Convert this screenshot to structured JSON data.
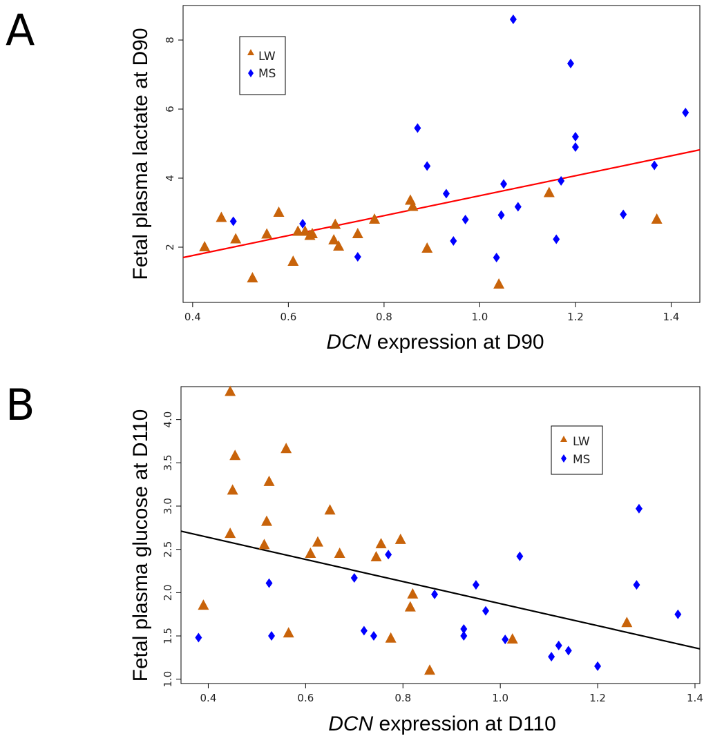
{
  "chart_data": [
    {
      "type": "scatter",
      "panel": "A",
      "ylabel": "Fetal plasma lactate at D90",
      "xlabel_italic": "DCN",
      "xlabel_rest": " expression at D90",
      "xlim": [
        0.38,
        1.46
      ],
      "ylim": [
        0.4,
        9.0
      ],
      "xticks": [
        "0.4",
        "0.6",
        "0.8",
        "1.0",
        "1.2",
        "1.4"
      ],
      "yticks": [
        "2",
        "4",
        "6",
        "8"
      ],
      "xtick_values": [
        0.4,
        0.6,
        0.8,
        1.0,
        1.2,
        1.4
      ],
      "ytick_values": [
        2,
        4,
        6,
        8
      ],
      "legend": {
        "position": "top-left",
        "entries": [
          "LW",
          "MS"
        ]
      },
      "colors": {
        "LW": "#c8630a",
        "MS": "#0000ff",
        "fit": "#ff0000"
      },
      "series": [
        {
          "name": "LW",
          "marker": "triangle",
          "points": [
            [
              0.425,
              2.0
            ],
            [
              0.46,
              2.85
            ],
            [
              0.49,
              2.23
            ],
            [
              0.525,
              1.1
            ],
            [
              0.555,
              2.37
            ],
            [
              0.58,
              3.0
            ],
            [
              0.61,
              1.58
            ],
            [
              0.62,
              2.45
            ],
            [
              0.635,
              2.45
            ],
            [
              0.645,
              2.33
            ],
            [
              0.65,
              2.38
            ],
            [
              0.695,
              2.2
            ],
            [
              0.698,
              2.65
            ],
            [
              0.705,
              2.02
            ],
            [
              0.745,
              2.38
            ],
            [
              0.78,
              2.8
            ],
            [
              0.855,
              3.35
            ],
            [
              0.86,
              3.17
            ],
            [
              0.89,
              1.96
            ],
            [
              1.04,
              0.92
            ],
            [
              1.145,
              3.57
            ],
            [
              1.37,
              2.8
            ]
          ]
        },
        {
          "name": "MS",
          "marker": "diamond",
          "points": [
            [
              0.485,
              2.75
            ],
            [
              0.63,
              2.68
            ],
            [
              0.745,
              1.72
            ],
            [
              0.87,
              5.45
            ],
            [
              0.89,
              4.35
            ],
            [
              0.93,
              3.55
            ],
            [
              0.945,
              2.18
            ],
            [
              0.97,
              2.8
            ],
            [
              1.035,
              1.7
            ],
            [
              1.045,
              2.93
            ],
            [
              1.05,
              3.83
            ],
            [
              1.07,
              8.6
            ],
            [
              1.08,
              3.17
            ],
            [
              1.16,
              2.23
            ],
            [
              1.17,
              3.92
            ],
            [
              1.19,
              7.32
            ],
            [
              1.2,
              4.9
            ],
            [
              1.2,
              5.2
            ],
            [
              1.3,
              2.95
            ],
            [
              1.365,
              4.37
            ],
            [
              1.43,
              5.9
            ]
          ]
        }
      ],
      "fit_line": {
        "x": [
          0.38,
          1.46
        ],
        "y": [
          1.7,
          4.82
        ]
      }
    },
    {
      "type": "scatter",
      "panel": "B",
      "ylabel": "Fetal plasma glucose at D110",
      "xlabel_italic": "DCN",
      "xlabel_rest": " expression at D110",
      "xlim": [
        0.344,
        1.41
      ],
      "ylim": [
        0.95,
        4.38
      ],
      "xticks": [
        "0.4",
        "0.6",
        "0.8",
        "1.0",
        "1.2",
        "1.4"
      ],
      "yticks": [
        "1.0",
        "1.5",
        "2.0",
        "2.5",
        "3.0",
        "3.5",
        "4.0"
      ],
      "xtick_values": [
        0.4,
        0.6,
        0.8,
        1.0,
        1.2,
        1.4
      ],
      "ytick_values": [
        1.0,
        1.5,
        2.0,
        2.5,
        3.0,
        3.5,
        4.0
      ],
      "legend": {
        "position": "top-right",
        "entries": [
          "LW",
          "MS"
        ]
      },
      "colors": {
        "LW": "#c8630a",
        "MS": "#0000ff",
        "fit": "#000000"
      },
      "series": [
        {
          "name": "LW",
          "marker": "triangle",
          "points": [
            [
              0.39,
              1.85
            ],
            [
              0.445,
              4.32
            ],
            [
              0.445,
              2.68
            ],
            [
              0.45,
              3.18
            ],
            [
              0.455,
              3.58
            ],
            [
              0.515,
              2.55
            ],
            [
              0.52,
              2.82
            ],
            [
              0.525,
              3.28
            ],
            [
              0.56,
              3.66
            ],
            [
              0.565,
              1.53
            ],
            [
              0.61,
              2.45
            ],
            [
              0.625,
              2.58
            ],
            [
              0.65,
              2.95
            ],
            [
              0.67,
              2.45
            ],
            [
              0.745,
              2.41
            ],
            [
              0.755,
              2.56
            ],
            [
              0.775,
              1.47
            ],
            [
              0.795,
              2.61
            ],
            [
              0.815,
              1.83
            ],
            [
              0.82,
              1.98
            ],
            [
              0.855,
              1.1
            ],
            [
              1.025,
              1.46
            ],
            [
              1.26,
              1.65
            ]
          ]
        },
        {
          "name": "MS",
          "marker": "diamond",
          "points": [
            [
              0.38,
              1.48
            ],
            [
              0.525,
              2.11
            ],
            [
              0.53,
              1.5
            ],
            [
              0.7,
              2.17
            ],
            [
              0.72,
              1.56
            ],
            [
              0.74,
              1.5
            ],
            [
              0.77,
              2.44
            ],
            [
              0.865,
              1.98
            ],
            [
              0.925,
              1.58
            ],
            [
              0.925,
              1.5
            ],
            [
              0.95,
              2.09
            ],
            [
              0.97,
              1.79
            ],
            [
              1.01,
              1.46
            ],
            [
              1.04,
              2.42
            ],
            [
              1.105,
              1.26
            ],
            [
              1.12,
              1.39
            ],
            [
              1.14,
              1.33
            ],
            [
              1.2,
              1.15
            ],
            [
              1.28,
              2.09
            ],
            [
              1.285,
              2.97
            ],
            [
              1.365,
              1.75
            ]
          ]
        }
      ],
      "fit_line": {
        "x": [
          0.344,
          1.41
        ],
        "y": [
          2.71,
          1.35
        ]
      }
    }
  ]
}
